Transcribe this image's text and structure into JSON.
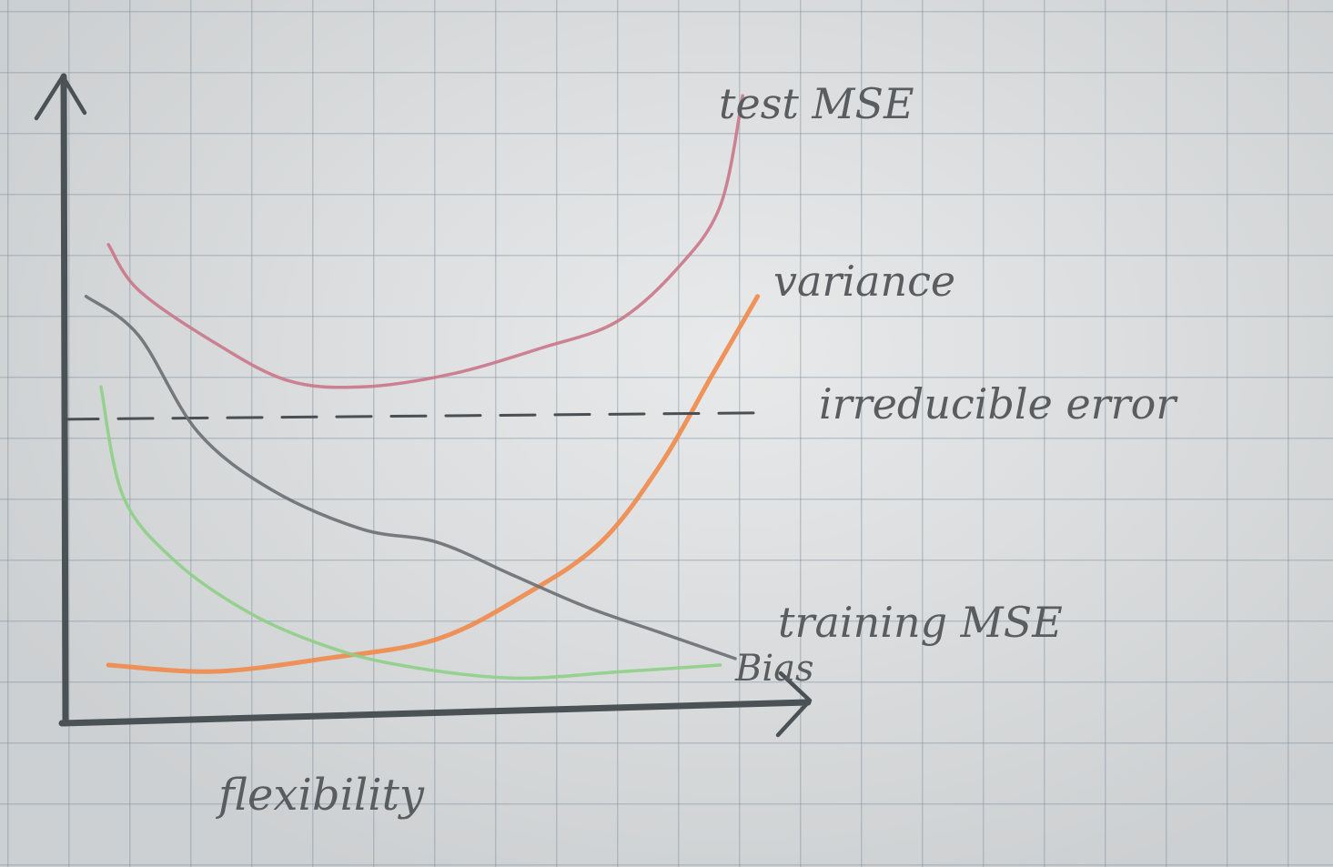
{
  "chart_data": {
    "type": "line",
    "xlabel": "flexibility",
    "ylabel": "",
    "x_range": [
      0,
      1
    ],
    "y_range": [
      0,
      1
    ],
    "grid": true,
    "series": [
      {
        "name": "test MSE",
        "color": "#c9778a",
        "style": "solid",
        "points": [
          [
            0.06,
            0.74
          ],
          [
            0.1,
            0.67
          ],
          [
            0.2,
            0.59
          ],
          [
            0.3,
            0.53
          ],
          [
            0.4,
            0.52
          ],
          [
            0.52,
            0.54
          ],
          [
            0.64,
            0.58
          ],
          [
            0.74,
            0.62
          ],
          [
            0.82,
            0.7
          ],
          [
            0.88,
            0.8
          ],
          [
            0.91,
            0.97
          ]
        ]
      },
      {
        "name": "variance",
        "color": "#f08a4a",
        "style": "solid",
        "points": [
          [
            0.06,
            0.09
          ],
          [
            0.2,
            0.08
          ],
          [
            0.35,
            0.1
          ],
          [
            0.5,
            0.13
          ],
          [
            0.62,
            0.2
          ],
          [
            0.72,
            0.28
          ],
          [
            0.8,
            0.4
          ],
          [
            0.87,
            0.54
          ],
          [
            0.93,
            0.66
          ]
        ]
      },
      {
        "name": "irreducible error",
        "color": "#4a4f53",
        "style": "dashed",
        "points": [
          [
            0.0,
            0.47
          ],
          [
            0.95,
            0.48
          ]
        ]
      },
      {
        "name": "training MSE",
        "color": "#6a6f73",
        "style": "solid",
        "points": [
          [
            0.03,
            0.66
          ],
          [
            0.1,
            0.6
          ],
          [
            0.18,
            0.45
          ],
          [
            0.28,
            0.36
          ],
          [
            0.4,
            0.3
          ],
          [
            0.5,
            0.28
          ],
          [
            0.6,
            0.23
          ],
          [
            0.7,
            0.18
          ],
          [
            0.8,
            0.14
          ],
          [
            0.9,
            0.1
          ]
        ]
      },
      {
        "name": "Bias",
        "color": "#8ecf86",
        "style": "solid",
        "points": [
          [
            0.05,
            0.52
          ],
          [
            0.08,
            0.35
          ],
          [
            0.15,
            0.25
          ],
          [
            0.25,
            0.17
          ],
          [
            0.35,
            0.12
          ],
          [
            0.45,
            0.09
          ],
          [
            0.6,
            0.07
          ],
          [
            0.75,
            0.08
          ],
          [
            0.88,
            0.09
          ]
        ]
      }
    ]
  }
}
